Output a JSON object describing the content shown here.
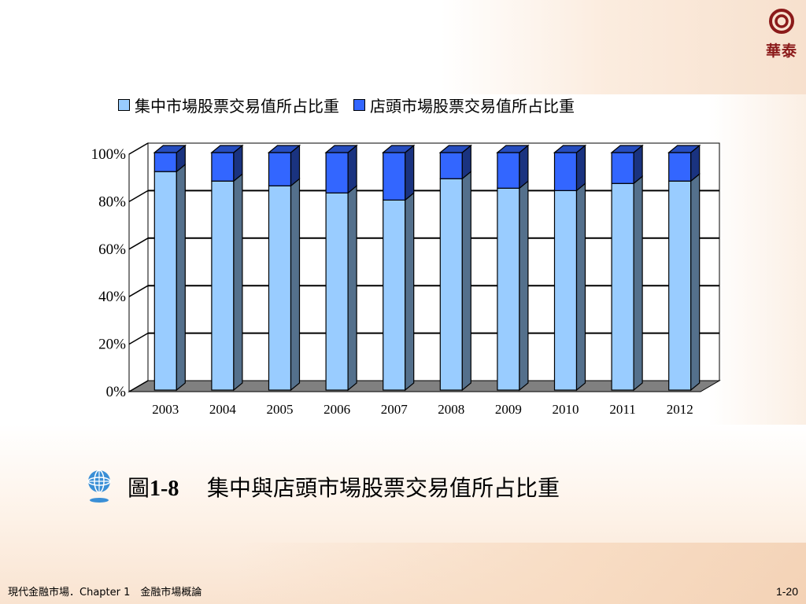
{
  "brand": {
    "name": "華泰",
    "ring_color": "#8b1a1a"
  },
  "caption": {
    "prefix": "圖",
    "number": "1-8",
    "text": "集中與店頭市場股票交易值所占比重",
    "icon": "globe-icon"
  },
  "footer": {
    "left": "現代金融市場．Chapter 1　金融市場概論",
    "page": "1-20"
  },
  "colors": {
    "series1": "#99ccff",
    "series2": "#3366ff",
    "floor": "#808080",
    "grid": "#000000"
  },
  "chart_data": {
    "type": "bar",
    "stacked": true,
    "percent_stacked": true,
    "three_d": true,
    "categories": [
      "2003",
      "2004",
      "2005",
      "2006",
      "2007",
      "2008",
      "2009",
      "2010",
      "2011",
      "2012"
    ],
    "series": [
      {
        "name": "集中市場股票交易值所占比重",
        "values": [
          92,
          88,
          86,
          83,
          80,
          89,
          85,
          84,
          87,
          88
        ]
      },
      {
        "name": "店頭市場股票交易值所占比重",
        "values": [
          8,
          12,
          14,
          17,
          20,
          11,
          15,
          16,
          13,
          12
        ]
      }
    ],
    "ylim": [
      0,
      100
    ],
    "yticks": [
      "0%",
      "20%",
      "40%",
      "60%",
      "80%",
      "100%"
    ],
    "grid": true,
    "legend_position": "top"
  }
}
